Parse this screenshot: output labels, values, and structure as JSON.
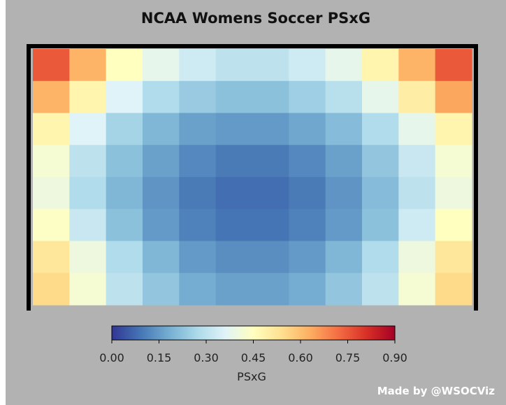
{
  "chart_data": {
    "type": "heatmap",
    "title": "NCAA Womens Soccer PSxG",
    "description_of_pattern": "",
    "colormap": [
      "#313695",
      "#4575b4",
      "#74add1",
      "#abd9e9",
      "#e0f3f8",
      "#ffffbf",
      "#fee090",
      "#fdae61",
      "#f46d43",
      "#d73027",
      "#a50026"
    ],
    "colorbar": {
      "label": "PSxG",
      "range": [
        0.0,
        0.9
      ],
      "ticks": [
        "0.00",
        "0.15",
        "0.30",
        "0.45",
        "0.60",
        "0.75",
        "0.90"
      ]
    },
    "grid_rows": 8,
    "grid_cols": 12,
    "values": [
      [
        0.75,
        0.62,
        0.45,
        0.38,
        0.33,
        0.3,
        0.3,
        0.33,
        0.38,
        0.48,
        0.62,
        0.75
      ],
      [
        0.62,
        0.48,
        0.36,
        0.28,
        0.24,
        0.22,
        0.22,
        0.25,
        0.29,
        0.38,
        0.5,
        0.64
      ],
      [
        0.48,
        0.36,
        0.26,
        0.2,
        0.16,
        0.15,
        0.15,
        0.17,
        0.21,
        0.28,
        0.38,
        0.48
      ],
      [
        0.42,
        0.3,
        0.22,
        0.16,
        0.12,
        0.1,
        0.1,
        0.12,
        0.16,
        0.23,
        0.32,
        0.42
      ],
      [
        0.4,
        0.28,
        0.2,
        0.14,
        0.1,
        0.08,
        0.08,
        0.1,
        0.14,
        0.21,
        0.3,
        0.4
      ],
      [
        0.44,
        0.32,
        0.22,
        0.15,
        0.11,
        0.09,
        0.09,
        0.11,
        0.15,
        0.22,
        0.33,
        0.45
      ],
      [
        0.52,
        0.4,
        0.28,
        0.2,
        0.15,
        0.13,
        0.13,
        0.15,
        0.2,
        0.28,
        0.4,
        0.52
      ],
      [
        0.55,
        0.42,
        0.3,
        0.23,
        0.18,
        0.16,
        0.16,
        0.18,
        0.23,
        0.3,
        0.42,
        0.55
      ]
    ]
  },
  "credit": "Made by @WSOCViz"
}
